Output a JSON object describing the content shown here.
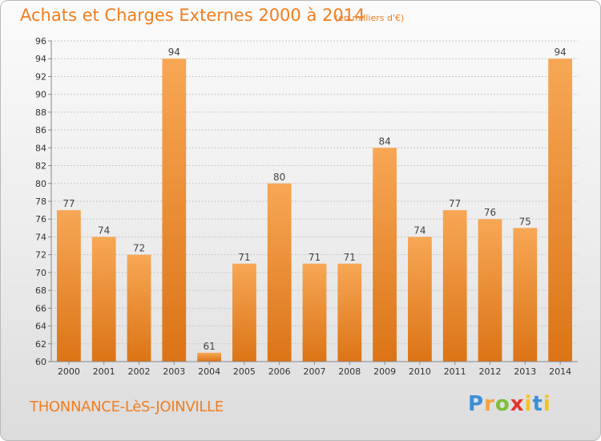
{
  "header": {
    "title": "Achats et Charges Externes 2000 à 2014",
    "unit": "(en milliers d'€)"
  },
  "footer": {
    "location": "THONNANCE-LèS-JOINVILLE",
    "logo": "Proxiti"
  },
  "colors": {
    "bar_light": "#f7a755",
    "bar_dark": "#dc7416",
    "accent": "#f07e1e"
  },
  "chart_data": {
    "type": "bar",
    "categories": [
      "2000",
      "2001",
      "2002",
      "2003",
      "2004",
      "2005",
      "2006",
      "2007",
      "2008",
      "2009",
      "2010",
      "2011",
      "2012",
      "2013",
      "2014"
    ],
    "values": [
      77,
      74,
      72,
      94,
      61,
      71,
      80,
      71,
      71,
      84,
      74,
      77,
      76,
      75,
      94
    ],
    "title": "Achats et Charges Externes 2000 à 2014",
    "ylim": [
      60,
      96
    ],
    "yticks": [
      60,
      62,
      64,
      66,
      68,
      70,
      72,
      74,
      76,
      78,
      80,
      82,
      84,
      86,
      88,
      90,
      92,
      94,
      96
    ],
    "grid": true,
    "data_labels": true
  }
}
